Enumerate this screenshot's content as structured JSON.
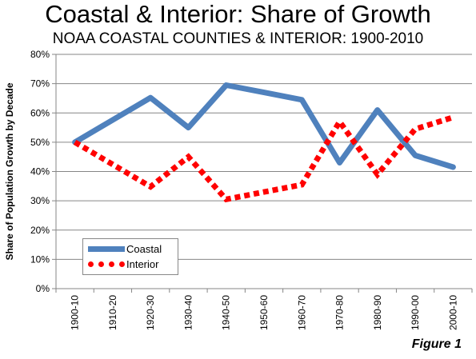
{
  "chart_data": {
    "type": "line",
    "title": "Coastal & Interior: Share of Growth",
    "subtitle": "NOAA COASTAL COUNTIES & INTERIOR: 1900-2010",
    "ylabel": "Share of Population Growth by Decade",
    "xlabel": "",
    "categories": [
      "1900-10",
      "1910-20",
      "1920-30",
      "1930-40",
      "1940-50",
      "1950-60",
      "1960-70",
      "1970-80",
      "1980-90",
      "1990-00",
      "2000-10"
    ],
    "ylim": [
      0,
      80
    ],
    "yticks": [
      "0%",
      "10%",
      "20%",
      "30%",
      "40%",
      "50%",
      "60%",
      "70%",
      "80%"
    ],
    "grid": true,
    "legend_position": "bottom-left",
    "series": [
      {
        "name": "Coastal",
        "color": "#4f81bd",
        "style": "solid",
        "values": [
          50,
          57.6,
          65.2,
          55,
          69.5,
          67,
          64.5,
          43,
          61,
          45.5,
          41.5
        ]
      },
      {
        "name": "Interior",
        "color": "#ff0000",
        "style": "dotted",
        "values": [
          50,
          42.4,
          34.8,
          45,
          30.5,
          33,
          35.5,
          57,
          39,
          54.5,
          58.5
        ]
      }
    ],
    "annotation": "Figure 1"
  }
}
